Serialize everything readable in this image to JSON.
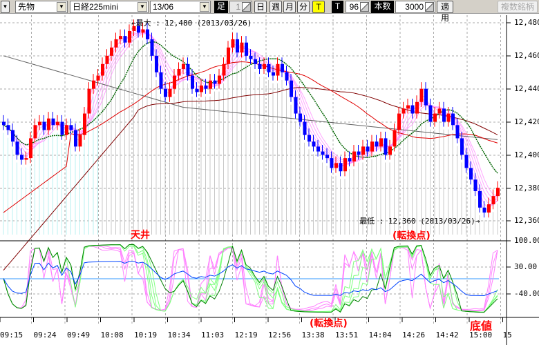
{
  "toolbar": {
    "market": "先物",
    "symbol": "日経225mini",
    "contract": "13/06",
    "bar_label": "足",
    "bar_count": "1",
    "periods": [
      "日",
      "週",
      "月",
      "分",
      "T"
    ],
    "active_period": "T",
    "tick_label": "T",
    "tick_value": "96",
    "count_label": "本数",
    "count_value": "3000",
    "apply": "適用",
    "multi_symbol": "複数銘柄"
  },
  "colors": {
    "up": "#ff0000",
    "down": "#0000ff",
    "fast_ma": "#ff80ff",
    "mid_ma": "#006400",
    "slow_ma": "#e00000",
    "long_ma": "#800000",
    "longest_ma": "#606060",
    "accent_yellow": "#ffff00",
    "annotation": "#ff0000"
  },
  "price_axis": [
    "12,480",
    "12,460",
    "12,440",
    "12,420",
    "12,400",
    "12,380",
    "12,360"
  ],
  "osc_axis": [
    "100.00",
    "30.00",
    "-40.00"
  ],
  "time_axis": [
    "09:15",
    "09:24",
    "09:49",
    "10:08",
    "10:19",
    "10:34",
    "11:03",
    "12:19",
    "12:56",
    "13:38",
    "13:51",
    "14:04",
    "14:26",
    "14:42",
    "15:00",
    "15"
  ],
  "max_label": "←最大 : 12,480 (2013/03/26)",
  "min_label": "最低 : 12,360 (2013/03/26)→",
  "annotations": {
    "top": "天井",
    "turn1": "(転換点)",
    "turn2": "(転換点)",
    "bottom": "底値"
  },
  "chart_data": {
    "type": "candlestick",
    "price_range": [
      12358,
      12484
    ],
    "osc_range": [
      -100,
      100
    ],
    "closes": [
      12418,
      12415,
      12408,
      12400,
      12397,
      12398,
      12410,
      12418,
      12420,
      12415,
      12422,
      12418,
      12420,
      12412,
      12418,
      12415,
      12405,
      12412,
      12425,
      12440,
      12445,
      12448,
      12455,
      12460,
      12465,
      12470,
      12472,
      12468,
      12475,
      12478,
      12474,
      12476,
      12470,
      12460,
      12450,
      12440,
      12435,
      12440,
      12448,
      12452,
      12455,
      12448,
      12440,
      12438,
      12442,
      12440,
      12445,
      12443,
      12448,
      12455,
      12465,
      12470,
      12462,
      12468,
      12460,
      12458,
      12455,
      12452,
      12455,
      12450,
      12448,
      12455,
      12450,
      12445,
      12435,
      12425,
      12420,
      12412,
      12408,
      12405,
      12402,
      12400,
      12398,
      12392,
      12395,
      12390,
      12398,
      12396,
      12402,
      12400,
      12405,
      12402,
      12408,
      12405,
      12410,
      12400,
      12405,
      12415,
      12425,
      12428,
      12430,
      12425,
      12432,
      12440,
      12430,
      12420,
      12425,
      12428,
      12420,
      12425,
      12418,
      12410,
      12400,
      12392,
      12385,
      12378,
      12368,
      12365,
      12370,
      12375,
      12380
    ]
  }
}
